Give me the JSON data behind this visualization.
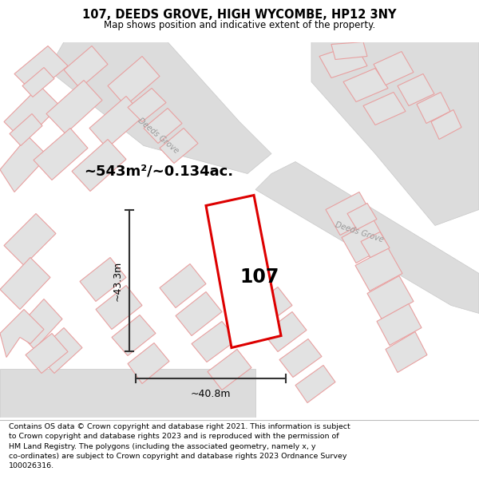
{
  "title": "107, DEEDS GROVE, HIGH WYCOMBE, HP12 3NY",
  "subtitle": "Map shows position and indicative extent of the property.",
  "footer": "Contains OS data © Crown copyright and database right 2021. This information is subject\nto Crown copyright and database rights 2023 and is reproduced with the permission of\nHM Land Registry. The polygons (including the associated geometry, namely x, y\nco-ordinates) are subject to Crown copyright and database rights 2023 Ordnance Survey\n100026316.",
  "map_bg": "#f2f2f2",
  "road_color": "#dcdcdc",
  "building_fill": "#e2e2e2",
  "building_stroke": "#e8a0a0",
  "highlight_stroke": "#dd0000",
  "dim_color": "#333333",
  "area_text": "~543m²/~0.134ac.",
  "label_107": "107",
  "dim_height": "~43.3m",
  "dim_width": "~40.8m",
  "road_label_ul": "Deeds Grove",
  "road_label_cr": "Deeds Grove"
}
